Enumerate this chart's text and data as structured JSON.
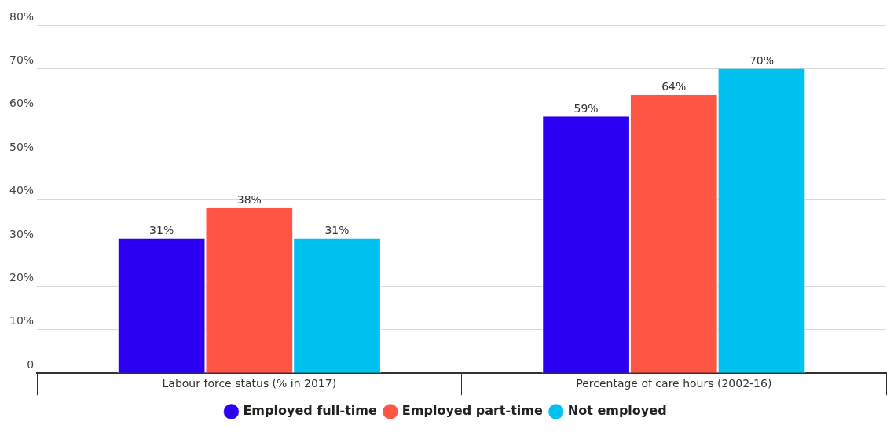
{
  "chart_data": {
    "type": "bar",
    "categories": [
      "Labour force status (% in 2017)",
      "Percentage of care hours (2002-16)"
    ],
    "series": [
      {
        "name": "Employed full-time",
        "color": "#2b00f2",
        "values": [
          31,
          59
        ],
        "value_labels": [
          "31%",
          "59%"
        ]
      },
      {
        "name": "Employed part-time",
        "color": "#ff5545",
        "values": [
          38,
          64
        ],
        "value_labels": [
          "38%",
          "64%"
        ]
      },
      {
        "name": "Not employed",
        "color": "#00c2f0",
        "values": [
          31,
          70
        ],
        "value_labels": [
          "31%",
          "70%"
        ]
      }
    ],
    "ylim": [
      0,
      80
    ],
    "yticks": [
      {
        "value": 0,
        "label": "0"
      },
      {
        "value": 10,
        "label": "10%"
      },
      {
        "value": 20,
        "label": "20%"
      },
      {
        "value": 30,
        "label": "30%"
      },
      {
        "value": 40,
        "label": "40%"
      },
      {
        "value": 50,
        "label": "50%"
      },
      {
        "value": 60,
        "label": "60%"
      },
      {
        "value": 70,
        "label": "70%"
      },
      {
        "value": 80,
        "label": "80%"
      }
    ],
    "grid": "y",
    "legend": "bottom"
  }
}
